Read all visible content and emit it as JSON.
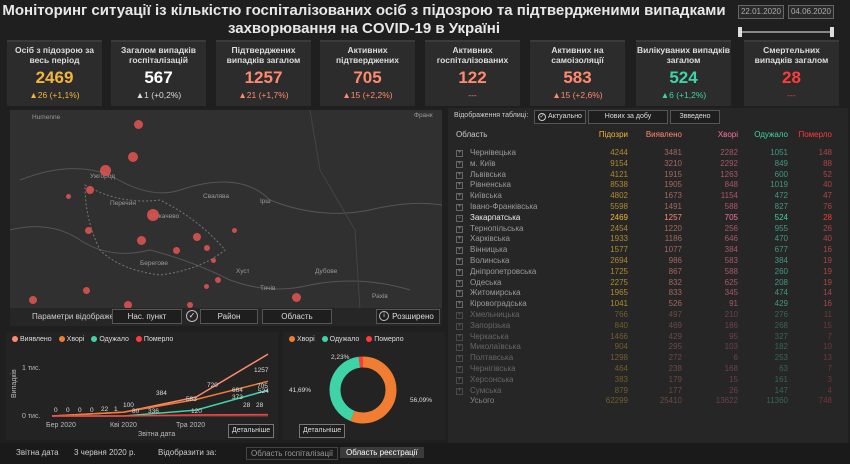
{
  "header": {
    "title_line1": "Моніторинг ситуації із кількістю госпіталізованих осіб з підозрою та підтвердженими випадками",
    "title_line2": "захворювання на COVID-19 в Україні",
    "date_from": "22.01.2020",
    "date_to": "04.06.2020"
  },
  "kpis": [
    {
      "label": "Осіб з підозрою за весь період",
      "value": "2469",
      "change": "▲26 (+1,1%)",
      "value_color": "#f3b63a",
      "change_color": "#f3b63a"
    },
    {
      "label": "Загалом випадків госпіталізацій",
      "value": "567",
      "change": "▲1 (+0,2%)",
      "value_color": "#ffffff",
      "change_color": "#dddddd"
    },
    {
      "label": "Підтверджених випадків загалом",
      "value": "1257",
      "change": "▲21 (+1,7%)",
      "value_color": "#ff8a70",
      "change_color": "#ff8a70"
    },
    {
      "label": "Активних підтверджених",
      "value": "705",
      "change": "▲15 (+2,2%)",
      "value_color": "#ff8a70",
      "change_color": "#ff8a70"
    },
    {
      "label": "Активних госпіталізованих",
      "value": "122",
      "change": "---",
      "value_color": "#ff8a70",
      "change_color": "#ff8a70"
    },
    {
      "label": "Активних на самоізоляції",
      "value": "583",
      "change": "▲15 (+2,6%)",
      "value_color": "#ff8a70",
      "change_color": "#ff8a70"
    },
    {
      "label": "Вилікуваних випадків загалом",
      "value": "524",
      "change": "▲6 (+1,2%)",
      "value_color": "#3fd4a8",
      "change_color": "#3fd4a8"
    },
    {
      "label": "Смертельних випадків загалом",
      "value": "28",
      "change": "---",
      "value_color": "#ff3b3b",
      "change_color": "#ff3b3b"
    }
  ],
  "map": {
    "labels": [
      "Ужгород",
      "Мукачево",
      "Берегове",
      "Хуст",
      "Свалява",
      "Рахів",
      "Дубове",
      "Тячів",
      "Перечин",
      "Великий Березний",
      "Ірш",
      "Франк"
    ]
  },
  "map_params": {
    "label": "Параметри відображення :",
    "btn_city": "Нас. пункт",
    "btn_district": "Район",
    "btn_region": "Область",
    "btn_expand": "Розширено"
  },
  "line_chart": {
    "legend": [
      {
        "name": "Виявлено",
        "color": "#ff8a70"
      },
      {
        "name": "Хворі",
        "color": "#f07d32"
      },
      {
        "name": "Одужало",
        "color": "#3fd4a8"
      },
      {
        "name": "Померло",
        "color": "#ff3b3b"
      }
    ],
    "ylabel": "Випадків",
    "xlabel": "Звітна дата",
    "yticks": [
      "1 тис.",
      "0 тис."
    ],
    "xticks": [
      "Бер 2020",
      "Кві 2020",
      "Тра 2020"
    ],
    "point_labels": [
      "0",
      "0",
      "0",
      "0",
      "22",
      "1",
      "100",
      "80",
      "336",
      "384",
      "120",
      "583",
      "720",
      "664",
      "373",
      "1257",
      "705",
      "524",
      "28",
      "28"
    ],
    "detail_btn": "Детальніше"
  },
  "chart_data": [
    {
      "type": "line",
      "x": [
        "Бер 2020",
        "Кві 2020",
        "Тра 2020",
        "04.06.2020"
      ],
      "series": [
        {
          "name": "Виявлено",
          "values": [
            0,
            80,
            384,
            1257
          ]
        },
        {
          "name": "Хворі",
          "values": [
            0,
            80,
            336,
            705
          ]
        },
        {
          "name": "Одужало",
          "values": [
            0,
            1,
            120,
            524
          ]
        },
        {
          "name": "Померло",
          "values": [
            0,
            0,
            22,
            28
          ]
        }
      ],
      "ylabel": "Випадків",
      "xlabel": "Звітна дата"
    },
    {
      "type": "pie",
      "labels": [
        "Хворі",
        "Одужало",
        "Померло"
      ],
      "values": [
        56.09,
        41.69,
        2.23
      ],
      "value_labels": [
        "56,09%",
        "41,69%",
        "2,23%"
      ],
      "colors": [
        "#f07d32",
        "#3fd4a8",
        "#ff3b3b"
      ]
    }
  ],
  "pie": {
    "legend": [
      {
        "name": "Хворі",
        "color": "#f07d32"
      },
      {
        "name": "Одужало",
        "color": "#3fd4a8"
      },
      {
        "name": "Померло",
        "color": "#ff3b3b"
      }
    ],
    "label_sick": "56,09%",
    "label_rec": "41,69%",
    "label_dead": "2,23%",
    "detail_btn": "Детальніше"
  },
  "table": {
    "ctrl_label": "Відображення таблиці:",
    "btn_actual": "Актуально",
    "btn_new": "Нових за добу",
    "btn_recovered": "Звведено",
    "headers": [
      "Область",
      "Підозри",
      "Виявлено",
      "Хворі",
      "Одужало",
      "Померло"
    ],
    "rows": [
      {
        "name": "Чернівецька",
        "v": [
          "4244",
          "3481",
          "2282",
          "1051",
          "148"
        ],
        "hl": false
      },
      {
        "name": "м. Київ",
        "v": [
          "9154",
          "3210",
          "2292",
          "849",
          "88"
        ],
        "hl": false
      },
      {
        "name": "Львівська",
        "v": [
          "4121",
          "1915",
          "1263",
          "600",
          "52"
        ],
        "hl": false
      },
      {
        "name": "Рівненська",
        "v": [
          "8538",
          "1905",
          "848",
          "1019",
          "40"
        ],
        "hl": false
      },
      {
        "name": "Київська",
        "v": [
          "4802",
          "1673",
          "1154",
          "472",
          "47"
        ],
        "hl": false
      },
      {
        "name": "Івано-Франківська",
        "v": [
          "5598",
          "1491",
          "588",
          "827",
          "76"
        ],
        "hl": false
      },
      {
        "name": "Закарпатська",
        "v": [
          "2469",
          "1257",
          "705",
          "524",
          "28"
        ],
        "hl": true
      },
      {
        "name": "Тернопільська",
        "v": [
          "2454",
          "1220",
          "256",
          "955",
          "26"
        ],
        "hl": false
      },
      {
        "name": "Харківська",
        "v": [
          "1933",
          "1186",
          "646",
          "470",
          "40"
        ],
        "hl": false
      },
      {
        "name": "Вінницька",
        "v": [
          "1577",
          "1077",
          "384",
          "677",
          "16"
        ],
        "hl": false
      },
      {
        "name": "Волинська",
        "v": [
          "2694",
          "986",
          "583",
          "384",
          "19"
        ],
        "hl": false
      },
      {
        "name": "Дніпропетровська",
        "v": [
          "1725",
          "867",
          "588",
          "260",
          "19"
        ],
        "hl": false
      },
      {
        "name": "Одеська",
        "v": [
          "2275",
          "832",
          "625",
          "208",
          "19"
        ],
        "hl": false
      },
      {
        "name": "Житомирська",
        "v": [
          "1965",
          "833",
          "345",
          "474",
          "14"
        ],
        "hl": false
      },
      {
        "name": "Кіровоградська",
        "v": [
          "1041",
          "526",
          "91",
          "429",
          "16"
        ],
        "hl": false
      },
      {
        "name": "Хмельницька",
        "v": [
          "766",
          "497",
          "210",
          "276",
          "11"
        ],
        "hl": false
      },
      {
        "name": "Запорізька",
        "v": [
          "840",
          "469",
          "186",
          "268",
          "15"
        ],
        "hl": false
      },
      {
        "name": "Черкаська",
        "v": [
          "1466",
          "429",
          "95",
          "327",
          "7"
        ],
        "hl": false
      },
      {
        "name": "Миколаївська",
        "v": [
          "904",
          "295",
          "103",
          "182",
          "10"
        ],
        "hl": false
      },
      {
        "name": "Полтавська",
        "v": [
          "1298",
          "272",
          "6",
          "253",
          "13"
        ],
        "hl": false
      },
      {
        "name": "Чернігівська",
        "v": [
          "464",
          "238",
          "168",
          "63",
          "7"
        ],
        "hl": false
      },
      {
        "name": "Херсонська",
        "v": [
          "383",
          "179",
          "15",
          "161",
          "3"
        ],
        "hl": false
      },
      {
        "name": "Сумська",
        "v": [
          "879",
          "177",
          "26",
          "147",
          "4"
        ],
        "hl": false
      }
    ],
    "total": {
      "name": "Усього",
      "v": [
        "62299",
        "25410",
        "13622",
        "11360",
        "748"
      ]
    }
  },
  "footer": {
    "date_label": "Звітна дата",
    "date_value": "3 червня 2020 р.",
    "show_label": "Відобразити за:",
    "btn_hosp": "Область госпіталізації",
    "btn_reg": "Область реєстрації"
  }
}
